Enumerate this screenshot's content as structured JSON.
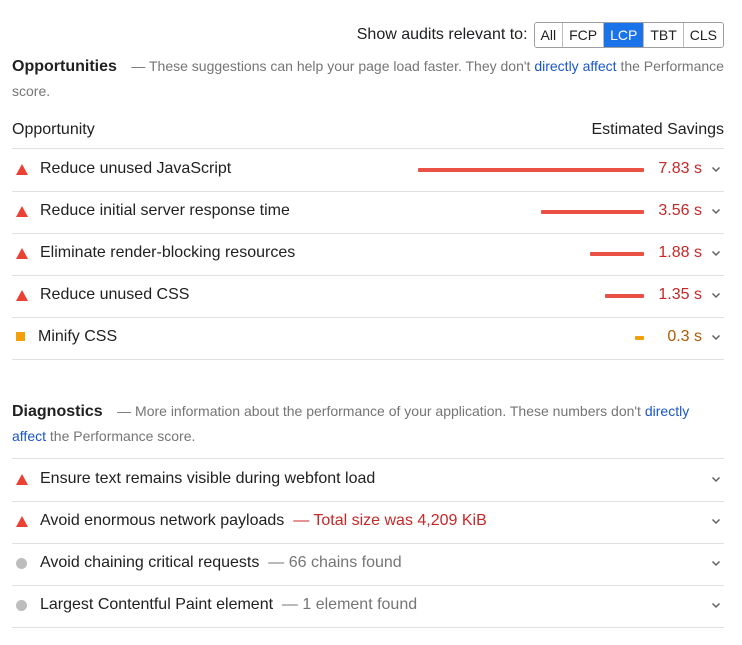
{
  "filter": {
    "label": "Show audits relevant to:",
    "options": [
      "All",
      "FCP",
      "LCP",
      "TBT",
      "CLS"
    ],
    "selected": "LCP"
  },
  "opportunities": {
    "title": "Opportunities",
    "desc_prefix": "— These suggestions can help your page load faster. They don't ",
    "desc_link": "directly affect",
    "desc_suffix": " the Performance score.",
    "col_left": "Opportunity",
    "col_right": "Estimated Savings",
    "items": [
      {
        "label": "Reduce unused JavaScript",
        "savings": "7.83 s",
        "savings_sec": 7.83,
        "severity": "fail"
      },
      {
        "label": "Reduce initial server response time",
        "savings": "3.56 s",
        "savings_sec": 3.56,
        "severity": "fail"
      },
      {
        "label": "Eliminate render-blocking resources",
        "savings": "1.88 s",
        "savings_sec": 1.88,
        "severity": "fail"
      },
      {
        "label": "Reduce unused CSS",
        "savings": "1.35 s",
        "savings_sec": 1.35,
        "severity": "fail"
      },
      {
        "label": "Minify CSS",
        "savings": "0.3 s",
        "savings_sec": 0.3,
        "severity": "average"
      }
    ]
  },
  "diagnostics": {
    "title": "Diagnostics",
    "desc_prefix": "— More information about the performance of your application. These numbers don't ",
    "desc_link": "directly affect",
    "desc_suffix": " the Performance score.",
    "items": [
      {
        "label": "Ensure text remains visible during webfont load",
        "detail": "",
        "severity": "fail"
      },
      {
        "label": "Avoid enormous network payloads",
        "detail": "— Total size was 4,209 KiB",
        "severity": "fail"
      },
      {
        "label": "Avoid chaining critical requests",
        "detail": "— 66 chains found",
        "severity": "info"
      },
      {
        "label": "Largest Contentful Paint element",
        "detail": "— 1 element found",
        "severity": "info"
      }
    ]
  },
  "colors": {
    "fail": "#eb4034",
    "average": "#f4a00a",
    "info": "#bdbdbd",
    "accent": "#1a73e8"
  }
}
